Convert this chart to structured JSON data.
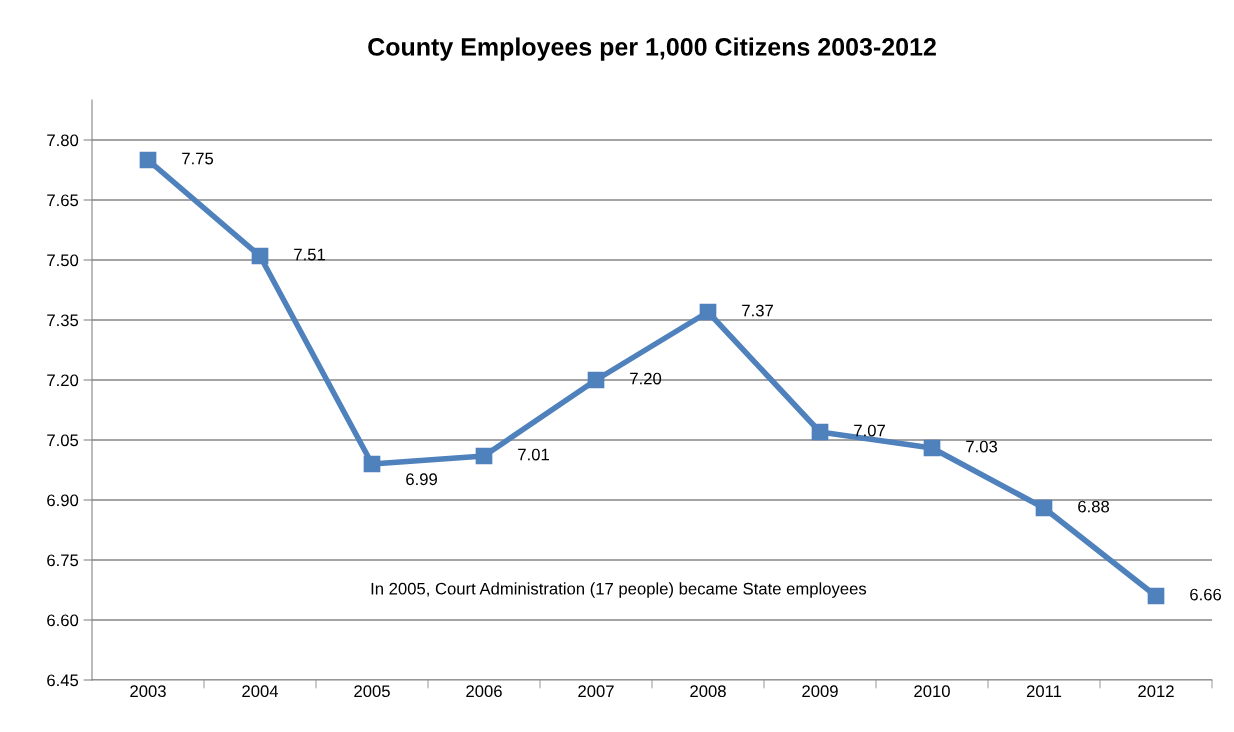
{
  "chart_data": {
    "type": "line",
    "title": "County Employees per 1,000 Citizens 2003-2012",
    "categories": [
      "2003",
      "2004",
      "2005",
      "2006",
      "2007",
      "2008",
      "2009",
      "2010",
      "2011",
      "2012"
    ],
    "series": [
      {
        "color": "#4f81bd",
        "values": [
          7.75,
          7.51,
          6.99,
          7.01,
          7.2,
          7.37,
          7.07,
          7.03,
          6.88,
          6.66
        ]
      }
    ],
    "value_labels": [
      "7.75",
      "7.51",
      "6.99",
      "7.01",
      "7.20",
      "7.37",
      "7.07",
      "7.03",
      "6.88",
      "6.66"
    ],
    "ylim": [
      6.45,
      7.9
    ],
    "yticks": [
      {
        "value": 6.45,
        "label": "6.45"
      },
      {
        "value": 6.6,
        "label": "6.60"
      },
      {
        "value": 6.75,
        "label": "6.75"
      },
      {
        "value": 6.9,
        "label": "6.90"
      },
      {
        "value": 7.05,
        "label": "7.05"
      },
      {
        "value": 7.2,
        "label": "7.20"
      },
      {
        "value": 7.35,
        "label": "7.35"
      },
      {
        "value": 7.5,
        "label": "7.50"
      },
      {
        "value": 7.65,
        "label": "7.65"
      },
      {
        "value": 7.8,
        "label": "7.80"
      }
    ],
    "grid": "y",
    "marker": "square",
    "line_style": "solid",
    "annotations": [
      "In 2005, Court Administration (17 people) became State employees"
    ]
  }
}
